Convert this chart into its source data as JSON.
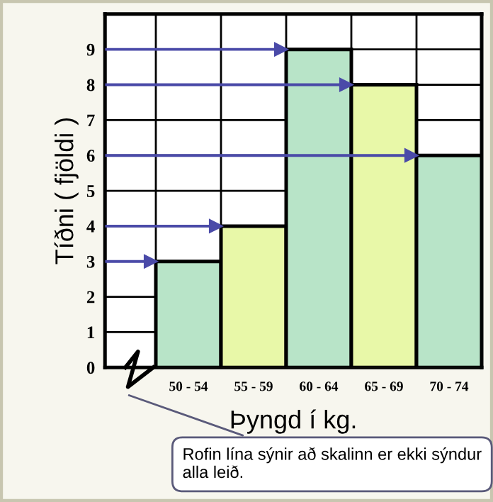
{
  "chart_data": {
    "type": "bar",
    "xlabel": "Þyngd í kg.",
    "ylabel": "Tíðni ( fjöldi )",
    "categories": [
      "50 - 54",
      "55 - 59",
      "60 - 64",
      "65 - 69",
      "70 - 74"
    ],
    "values": [
      3,
      4,
      9,
      8,
      6
    ],
    "colors": [
      "#b8e4c8",
      "#e8f8a8",
      "#b8e4c8",
      "#e8f8a8",
      "#b8e4c8"
    ],
    "ylim": [
      0,
      10
    ],
    "yticks": [
      0,
      1,
      2,
      3,
      4,
      5,
      6,
      7,
      8,
      9
    ],
    "grid": true,
    "ref_lines": [
      {
        "axis": "y",
        "value": 3,
        "color": "#4a4aa8"
      },
      {
        "axis": "y",
        "value": 4,
        "color": "#4a4aa8"
      },
      {
        "axis": "y",
        "value": 9,
        "color": "#4a4aa8"
      },
      {
        "axis": "y",
        "value": 8,
        "color": "#4a4aa8"
      },
      {
        "axis": "y",
        "value": 6,
        "color": "#4a4aa8"
      }
    ],
    "annotations": [
      "Rofin lína sýnir að skalinn er ekki sýndur alla leið."
    ]
  }
}
